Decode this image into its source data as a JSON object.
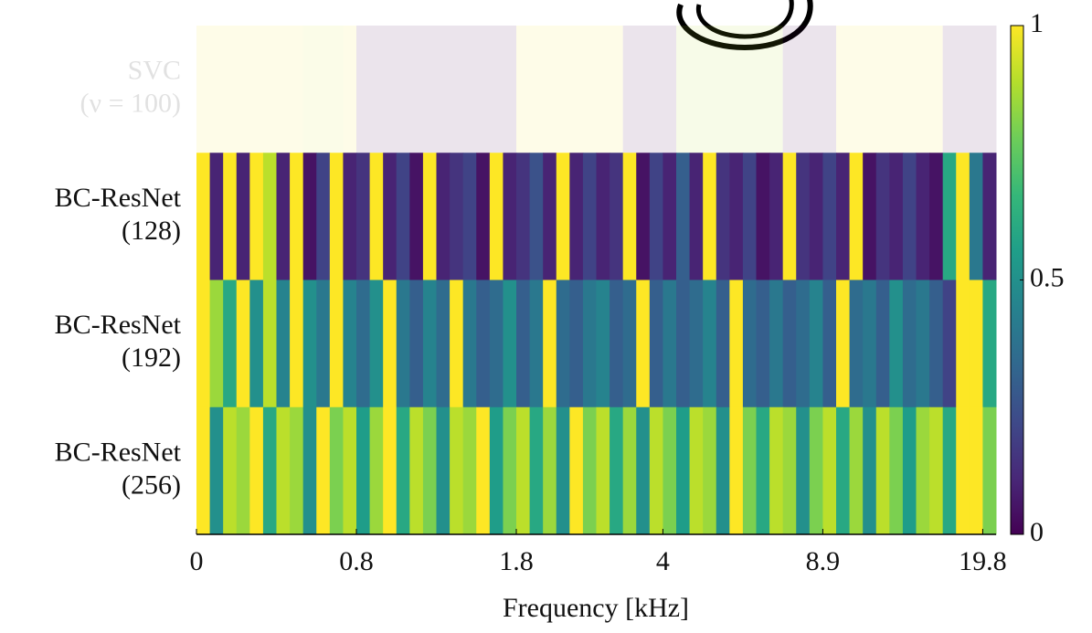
{
  "chart_data": {
    "type": "heatmap",
    "colormap": "viridis",
    "x_label": "Frequency [kHz]",
    "rows": [
      [
        "SVC",
        "(ν = 100)"
      ],
      [
        "BC-ResNet",
        "(128)"
      ],
      [
        "BC-ResNet",
        "(192)"
      ],
      [
        "BC-ResNet",
        "(256)"
      ]
    ],
    "xlim": [
      0,
      60
    ],
    "xticks": [
      {
        "value": 0,
        "label": "0"
      },
      {
        "value": 12,
        "label": "0.8"
      },
      {
        "value": 24,
        "label": "1.8"
      },
      {
        "value": 35,
        "label": "4"
      },
      {
        "value": 47,
        "label": "8.9"
      },
      {
        "value": 59,
        "label": "19.8"
      }
    ],
    "zlim": [
      0,
      1
    ],
    "zticks": [
      0,
      0.5,
      1
    ],
    "values": [
      [
        1,
        1,
        1,
        1,
        1,
        1,
        1,
        1,
        0.95,
        0.95,
        0.95,
        1,
        0,
        0,
        0,
        0,
        0,
        0,
        0,
        0,
        0,
        0,
        0,
        0,
        1,
        1,
        1,
        1,
        1,
        1,
        1,
        1,
        0,
        0,
        0,
        0,
        0.9,
        0.9,
        0.9,
        0.9,
        0.9,
        0.9,
        0.9,
        0.9,
        0,
        0,
        0,
        0,
        1,
        1,
        1,
        1,
        1,
        1,
        1,
        1,
        0,
        0,
        0,
        0
      ],
      [
        1,
        0.1,
        1,
        0.1,
        1,
        0.9,
        0.1,
        1,
        0.05,
        0.2,
        1,
        0.1,
        0.15,
        1,
        0.1,
        0.2,
        0.05,
        1,
        0.1,
        0.15,
        0.2,
        0.05,
        1,
        0.1,
        0.15,
        0.25,
        0.1,
        1,
        0.1,
        0.2,
        0.1,
        0.15,
        1,
        0.05,
        0.2,
        0.1,
        0.3,
        0.1,
        1,
        0.15,
        0.1,
        0.2,
        0.05,
        0.1,
        1,
        0.15,
        0.1,
        0.2,
        0.1,
        1,
        0.05,
        0.15,
        0.1,
        0.2,
        0.1,
        0.05,
        0.6,
        1,
        0.4,
        0.1
      ],
      [
        1,
        0.85,
        0.6,
        1,
        0.5,
        0.9,
        0.45,
        1,
        0.5,
        0.4,
        1,
        0.45,
        0.35,
        0.5,
        1,
        0.4,
        0.3,
        0.45,
        0.35,
        1,
        0.4,
        0.3,
        0.35,
        0.5,
        0.3,
        0.4,
        1,
        0.35,
        0.3,
        0.4,
        0.45,
        0.3,
        0.35,
        1,
        0.3,
        0.4,
        0.3,
        0.35,
        0.45,
        0.3,
        1,
        0.35,
        0.3,
        0.4,
        0.3,
        0.35,
        0.45,
        0.3,
        1,
        0.35,
        0.4,
        0.3,
        0.5,
        0.35,
        0.4,
        0.3,
        0.2,
        1,
        1,
        0.6
      ],
      [
        1,
        0.5,
        0.9,
        0.85,
        1,
        0.6,
        0.9,
        0.85,
        0.5,
        1,
        0.8,
        0.9,
        0.55,
        0.85,
        1,
        0.6,
        0.9,
        0.8,
        0.5,
        0.9,
        0.85,
        1,
        0.55,
        0.8,
        0.9,
        0.6,
        0.85,
        0.5,
        1,
        0.8,
        0.9,
        0.6,
        0.85,
        0.5,
        0.9,
        0.8,
        0.55,
        0.9,
        0.85,
        0.5,
        1,
        0.8,
        0.6,
        0.9,
        0.85,
        0.5,
        0.8,
        0.9,
        0.6,
        0.85,
        0.5,
        0.9,
        0.8,
        0.55,
        0.85,
        0.9,
        0.6,
        1,
        1,
        0.8
      ]
    ]
  }
}
